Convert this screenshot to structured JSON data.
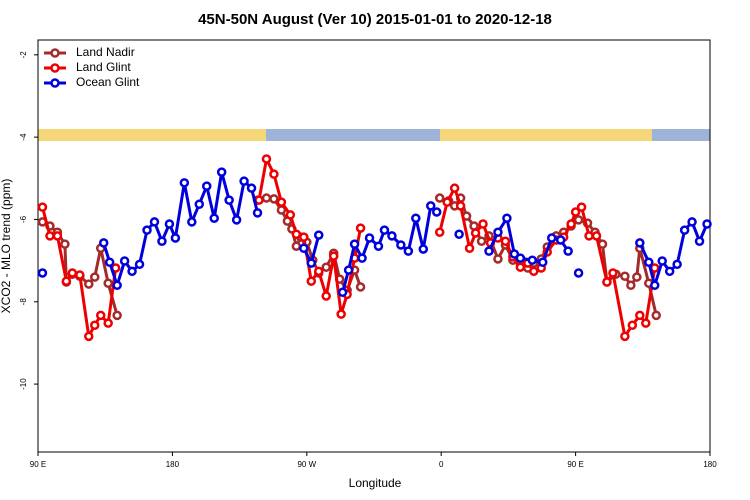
{
  "chart_data": {
    "type": "line",
    "title": "45N-50N August (Ver 10)   2015-01-01 to 2020-12-18",
    "x_label": "Longitude",
    "y_label": "XCO2 - MLO trend (ppm)",
    "xlim": [
      90,
      540
    ],
    "ylim": [
      -11.65,
      -1.64
    ],
    "xticks": [
      {
        "value": 90,
        "label": "90 E"
      },
      {
        "value": 180,
        "label": "180"
      },
      {
        "value": 270,
        "label": "90 W"
      },
      {
        "value": 360,
        "label": "0"
      },
      {
        "value": 450,
        "label": "90 E"
      },
      {
        "value": 540,
        "label": "180"
      }
    ],
    "yticks": [
      -2,
      -4,
      -6,
      -8,
      -10
    ],
    "grid": false,
    "legend": "top-left",
    "series": [
      {
        "name": "Land Nadir",
        "color": "#a52a2a",
        "x": [
          93,
          98,
          103,
          108,
          109,
          113,
          118,
          124,
          128,
          132,
          137,
          143,
          null,
          237,
          243,
          248,
          253,
          257,
          260,
          263,
          266,
          270,
          274,
          278,
          283,
          288,
          292,
          297,
          302,
          306,
          null,
          359,
          365,
          369,
          373,
          377,
          382,
          387,
          392,
          398,
          403,
          408,
          413,
          418,
          422,
          427,
          431,
          437,
          442,
          447,
          452,
          458,
          463,
          468,
          471,
          477,
          483,
          487,
          491,
          493,
          499,
          504
        ],
        "values": [
          -6.06,
          -6.16,
          -6.31,
          -6.6,
          -7.52,
          -7.33,
          -7.38,
          -7.57,
          -7.4,
          -6.7,
          -7.55,
          -8.33,
          null,
          -5.53,
          -5.48,
          -5.5,
          -5.77,
          -6.04,
          -6.23,
          -6.65,
          -6.43,
          -6.55,
          -6.99,
          -7.3,
          -7.16,
          -6.82,
          -7.45,
          -7.72,
          -7.23,
          -7.64,
          null,
          -5.48,
          -5.55,
          -5.67,
          -5.48,
          -5.92,
          -6.16,
          -6.53,
          -6.4,
          -6.96,
          -6.62,
          -6.99,
          -7.08,
          -7.18,
          -7.06,
          -6.96,
          -6.67,
          -6.4,
          -6.31,
          -6.16,
          -6.01,
          -6.09,
          -6.31,
          -6.6,
          -7.52,
          -7.33,
          -7.38,
          -7.6,
          -7.4,
          -6.7,
          -7.55,
          -8.33
        ]
      },
      {
        "name": "Land Glint",
        "color": "#ee0000",
        "x": [
          93,
          98,
          103,
          109,
          113,
          118,
          124,
          128,
          132,
          137,
          142,
          null,
          238,
          243,
          248,
          253,
          259,
          263,
          268,
          273,
          278,
          283,
          288,
          293,
          297,
          302,
          306,
          null,
          359,
          364,
          369,
          373,
          379,
          383,
          388,
          393,
          398,
          403,
          408,
          413,
          418,
          422,
          427,
          431,
          437,
          442,
          447,
          450,
          454,
          459,
          464,
          471,
          475,
          483,
          488,
          493,
          497,
          503
        ],
        "values": [
          -5.7,
          -6.4,
          -6.4,
          -7.5,
          -7.3,
          -7.35,
          -8.84,
          -8.57,
          -8.33,
          -8.52,
          -7.18,
          null,
          -5.53,
          -4.53,
          -4.9,
          -5.58,
          -5.89,
          -6.36,
          -6.43,
          -7.5,
          -7.26,
          -7.86,
          -6.89,
          -8.3,
          -7.82,
          -6.94,
          -6.21,
          null,
          -6.31,
          -5.58,
          -5.24,
          -5.67,
          -6.7,
          -6.33,
          -6.11,
          -6.57,
          -6.45,
          -6.53,
          -6.91,
          -7.16,
          -7.06,
          -7.26,
          -7.18,
          -6.79,
          -6.5,
          -6.43,
          -6.11,
          -5.82,
          -5.7,
          -6.4,
          -6.4,
          -7.52,
          -7.3,
          -8.84,
          -8.57,
          -8.33,
          -8.52,
          -7.18
        ]
      },
      {
        "name": "Ocean Glint",
        "color": "#0000dd",
        "x": [
          93,
          null,
          134,
          138,
          143,
          148,
          153,
          158,
          163,
          168,
          173,
          178,
          182,
          188,
          193,
          198,
          203,
          208,
          213,
          218,
          223,
          228,
          233,
          237,
          null,
          268,
          273,
          278,
          null,
          294,
          298,
          302,
          307,
          312,
          318,
          322,
          327,
          333,
          338,
          343,
          348,
          353,
          357,
          null,
          372,
          null,
          392,
          398,
          404,
          409,
          413,
          421,
          428,
          434,
          440,
          445,
          null,
          452,
          null,
          493,
          499,
          503,
          508,
          513,
          518,
          523,
          528,
          533,
          538
        ],
        "values": [
          -7.3,
          null,
          -6.57,
          -7.04,
          -7.6,
          -7.01,
          -7.26,
          -7.09,
          -6.26,
          -6.06,
          -6.53,
          -6.11,
          -6.45,
          -5.11,
          -6.06,
          -5.63,
          -5.19,
          -5.97,
          -4.85,
          -5.53,
          -6.01,
          -5.07,
          -5.24,
          -5.84,
          null,
          -6.7,
          -7.06,
          -6.38,
          null,
          -7.77,
          -7.23,
          -6.6,
          -6.94,
          -6.45,
          -6.65,
          -6.26,
          -6.4,
          -6.62,
          -6.77,
          -5.97,
          -6.72,
          -5.67,
          -5.82,
          null,
          -6.36,
          null,
          -6.77,
          -6.31,
          -5.97,
          -6.84,
          -6.94,
          -6.99,
          -7.04,
          -6.45,
          -6.5,
          -6.77,
          null,
          -7.3,
          null,
          -6.57,
          -7.04,
          -7.6,
          -7.01,
          -7.26,
          -7.09,
          -6.26,
          -6.06,
          -6.53,
          -6.11
        ]
      }
    ]
  }
}
